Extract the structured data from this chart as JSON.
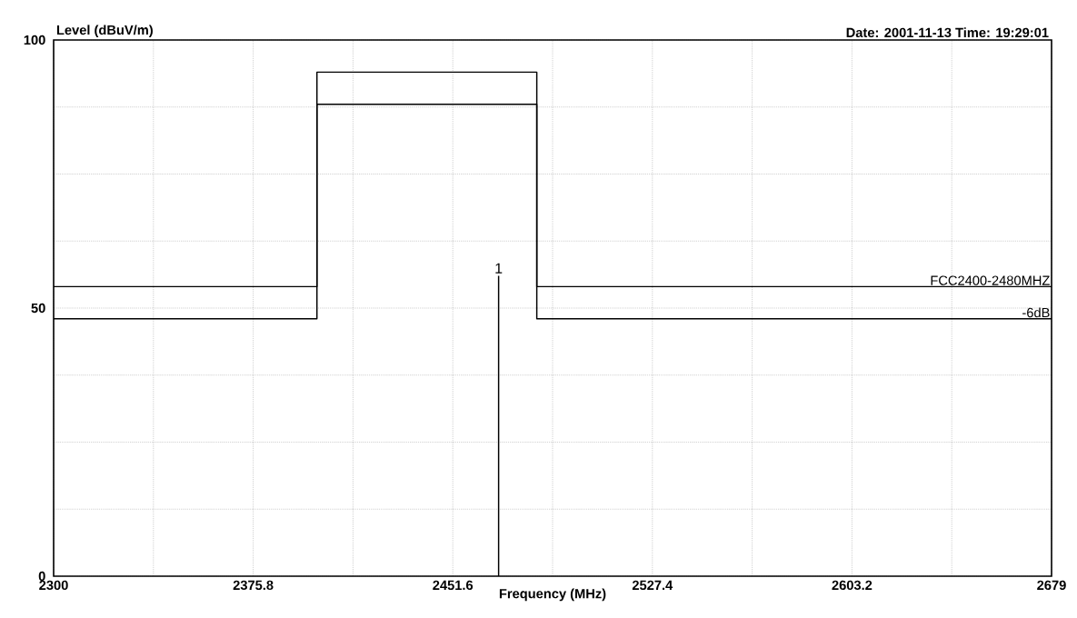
{
  "chart_data": {
    "type": "line",
    "xlabel": "Frequency (MHz)",
    "ylabel": "Level (dBuV/m)",
    "annotations": [
      "Date: 2001-11-13  Time: 19:29:01",
      {
        "text": "1",
        "x": 2469,
        "y": 56
      }
    ],
    "xlim": [
      2300,
      2679
    ],
    "ylim": [
      0,
      100
    ],
    "xticks": [
      2300,
      {
        "value": 2337.9,
        "label": null
      },
      2375.8,
      {
        "value": 2413.7,
        "label": null
      },
      2451.6,
      {
        "value": 2489.5,
        "label": null
      },
      2527.4,
      {
        "value": 2565.3,
        "label": null
      },
      2603.2,
      {
        "value": 2641.1,
        "label": null
      },
      2679
    ],
    "yticks": [
      0,
      {
        "value": 12.5,
        "label": null
      },
      {
        "value": 25,
        "label": null
      },
      {
        "value": 37.5,
        "label": null
      },
      50,
      {
        "value": 62.5,
        "label": null
      },
      {
        "value": 75,
        "label": null
      },
      {
        "value": 87.5,
        "label": null
      },
      100
    ],
    "grid": true,
    "series": [
      {
        "name": "FCC2400-2480MHZ",
        "color": "#000000",
        "x": [
          2300,
          2400,
          2400,
          2483.5,
          2483.5,
          2679
        ],
        "values": [
          54,
          54,
          94,
          94,
          54,
          54
        ]
      },
      {
        "name": "-6dB",
        "color": "#000000",
        "x": [
          2300,
          2400,
          2400,
          2483.5,
          2483.5,
          2679
        ],
        "values": [
          48,
          48,
          88,
          88,
          48,
          48
        ]
      },
      {
        "color": "#000000",
        "x": [
          2469,
          2469
        ],
        "values": [
          0,
          56
        ]
      }
    ]
  }
}
